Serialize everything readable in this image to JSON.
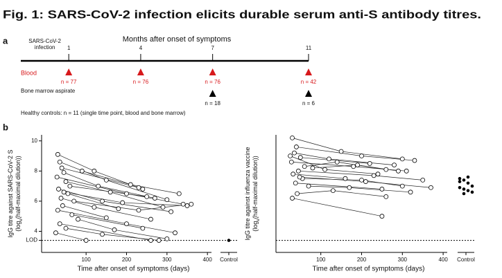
{
  "title": "Fig. 1: SARS-CoV-2 infection elicits durable serum anti-S antibody titres.",
  "panels": [
    "a",
    "b"
  ],
  "timeline": {
    "axis_title": "Months after onset of symptoms",
    "infection_label": [
      "SARS-CoV-2",
      "infection"
    ],
    "xlim": [
      -1,
      11
    ],
    "ticks": [
      1,
      4,
      7,
      11
    ],
    "blood": {
      "label": "Blood",
      "months": [
        1,
        4,
        7,
        11
      ],
      "n": [
        "n = 77",
        "n = 76",
        "n = 76",
        "n = 42"
      ]
    },
    "marrow": {
      "label": "Bone marrow aspirate",
      "months": [
        7,
        11
      ],
      "n": [
        "n = 18",
        "n = 6"
      ]
    },
    "controls_note": "Healthy controls: n = 11 (single time point, blood and bone marrow)"
  },
  "chart_data": [
    {
      "type": "line",
      "ylabel": [
        "IgG titre against SARS-CoV-2 S",
        "(log",
        "e",
        "(half-maximal dilution))"
      ],
      "xlabel": "Time after onset of symptoms (days)",
      "xlim": [
        -10,
        410
      ],
      "ylim": [
        2.6,
        10.4
      ],
      "xticks": [
        100,
        200,
        300,
        400
      ],
      "yticks": [
        4,
        6,
        8,
        10,
        {
          "value": 3.4,
          "label": "LOD"
        }
      ],
      "lod": 3.4,
      "control": {
        "label": "Control",
        "values": [
          3.4
        ]
      },
      "series": [
        {
          "x": [
            30,
            120,
            240
          ],
          "values": [
            9.1,
            8.0,
            6.8
          ]
        },
        {
          "x": [
            35,
            150,
            300
          ],
          "values": [
            8.6,
            7.4,
            6.1
          ]
        },
        {
          "x": [
            40,
            230
          ],
          "values": [
            8.2,
            6.9
          ]
        },
        {
          "x": [
            45,
            130,
            270
          ],
          "values": [
            7.9,
            7.0,
            6.2
          ]
        },
        {
          "x": [
            28,
            200,
            340
          ],
          "values": [
            7.6,
            6.5,
            5.8
          ]
        },
        {
          "x": [
            50,
            160,
            290
          ],
          "values": [
            7.3,
            6.6,
            5.6
          ]
        },
        {
          "x": [
            60,
            250
          ],
          "values": [
            7.0,
            6.3
          ]
        },
        {
          "x": [
            32,
            140,
            310
          ],
          "values": [
            6.8,
            6.0,
            5.3
          ]
        },
        {
          "x": [
            55,
            180
          ],
          "values": [
            6.5,
            5.5
          ]
        },
        {
          "x": [
            38,
            120,
            260
          ],
          "values": [
            6.2,
            5.6,
            4.8
          ]
        },
        {
          "x": [
            70,
            230,
            360
          ],
          "values": [
            6.0,
            5.4,
            5.8
          ]
        },
        {
          "x": [
            42,
            150
          ],
          "values": [
            5.7,
            4.9
          ]
        },
        {
          "x": [
            30,
            200,
            320
          ],
          "values": [
            5.4,
            4.5,
            3.9
          ]
        },
        {
          "x": [
            65,
            240
          ],
          "values": [
            5.1,
            4.2
          ]
        },
        {
          "x": [
            80,
            170,
            300
          ],
          "values": [
            4.8,
            4.1,
            3.5
          ]
        },
        {
          "x": [
            35,
            260
          ],
          "values": [
            4.5,
            3.4
          ]
        },
        {
          "x": [
            50,
            140,
            280
          ],
          "values": [
            4.2,
            3.8,
            3.4
          ]
        },
        {
          "x": [
            25,
            100
          ],
          "values": [
            3.9,
            3.4
          ]
        },
        {
          "x": [
            90,
            210,
            330
          ],
          "values": [
            8.0,
            7.1,
            6.5
          ]
        },
        {
          "x": [
            45,
            190,
            350
          ],
          "values": [
            6.6,
            5.9,
            5.7
          ]
        }
      ]
    },
    {
      "type": "line",
      "ylabel": [
        "IgG titre against influenza vaccine",
        "(log",
        "e",
        "(half-maximal dilution))"
      ],
      "xlabel": "Time after onset of symptoms (days)",
      "xlim": [
        -10,
        410
      ],
      "ylim": [
        2.6,
        10.4
      ],
      "xticks": [
        100,
        200,
        300,
        400
      ],
      "lod": 3.4,
      "control": {
        "label": "Control",
        "values": [
          7.5,
          7.4,
          7.2,
          7.0,
          6.9,
          6.8,
          6.7,
          6.6,
          7.3,
          6.5,
          7.6
        ]
      },
      "series": [
        {
          "x": [
            30,
            150,
            300
          ],
          "values": [
            10.2,
            9.3,
            8.8
          ]
        },
        {
          "x": [
            40,
            200,
            330
          ],
          "values": [
            9.6,
            9.0,
            8.7
          ]
        },
        {
          "x": [
            35,
            120,
            280
          ],
          "values": [
            9.2,
            8.8,
            8.4
          ]
        },
        {
          "x": [
            50,
            220
          ],
          "values": [
            8.9,
            8.5
          ]
        },
        {
          "x": [
            28,
            180,
            310
          ],
          "values": [
            8.6,
            8.3,
            8.0
          ]
        },
        {
          "x": [
            60,
            140,
            260
          ],
          "values": [
            8.3,
            8.6,
            8.1
          ]
        },
        {
          "x": [
            45,
            230,
            350
          ],
          "values": [
            8.0,
            7.7,
            7.4
          ]
        },
        {
          "x": [
            32,
            160
          ],
          "values": [
            7.8,
            7.5
          ]
        },
        {
          "x": [
            55,
            200,
            300
          ],
          "values": [
            7.5,
            7.4,
            7.0
          ]
        },
        {
          "x": [
            38,
            250
          ],
          "values": [
            7.2,
            6.8
          ]
        },
        {
          "x": [
            70,
            170,
            320
          ],
          "values": [
            7.0,
            6.9,
            6.6
          ]
        },
        {
          "x": [
            42,
            130,
            260
          ],
          "values": [
            6.5,
            6.7,
            6.3
          ]
        },
        {
          "x": [
            30,
            250
          ],
          "values": [
            6.2,
            5.0
          ]
        },
        {
          "x": [
            80,
            190,
            290
          ],
          "values": [
            8.2,
            8.4,
            8.0
          ]
        },
        {
          "x": [
            25,
            110,
            240
          ],
          "values": [
            9.0,
            8.1,
            7.8
          ]
        },
        {
          "x": [
            48,
            210,
            370
          ],
          "values": [
            7.6,
            7.3,
            6.9
          ]
        }
      ]
    }
  ]
}
